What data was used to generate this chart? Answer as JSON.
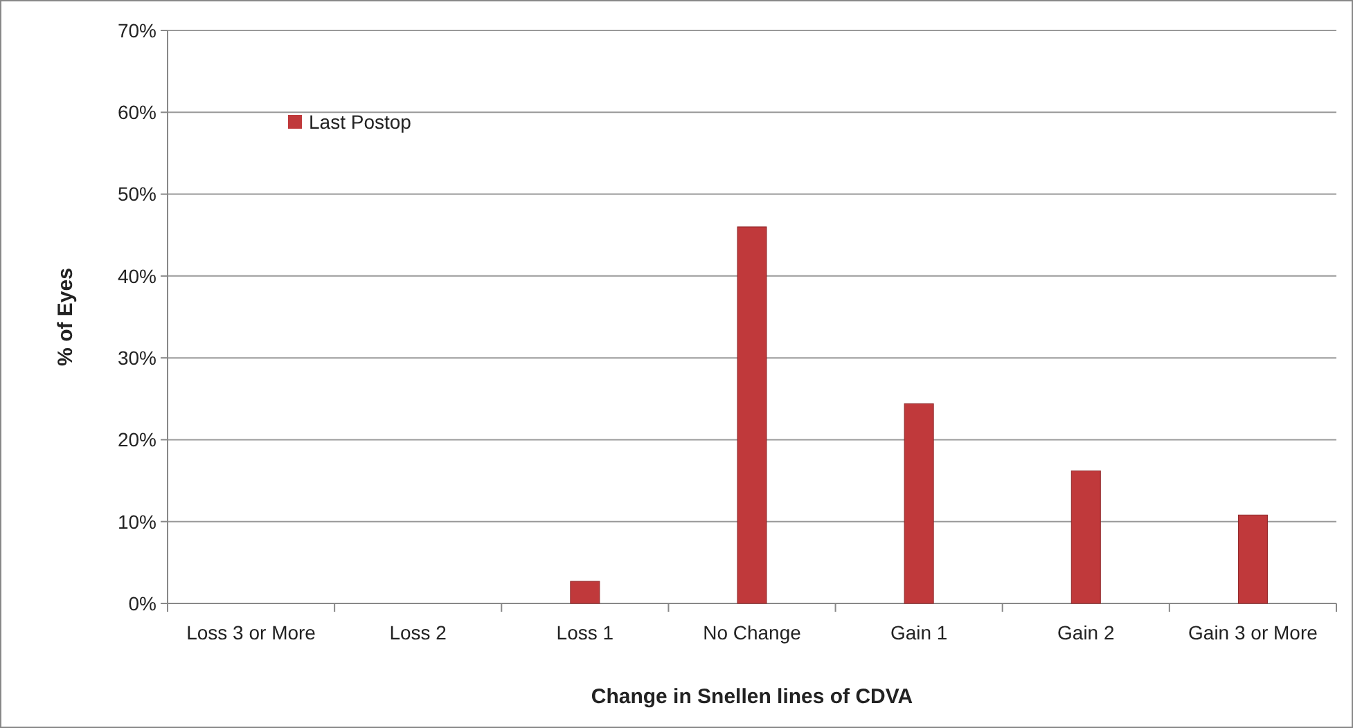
{
  "chart_data": {
    "type": "bar",
    "xlabel": "Change in Snellen lines of CDVA",
    "ylabel": "% of Eyes",
    "categories": [
      "Loss 3 or More",
      "Loss 2",
      "Loss 1",
      "No Change",
      "Gain 1",
      "Gain 2",
      "Gain 3 or More"
    ],
    "series": [
      {
        "name": "Last Postop",
        "color": "#c0393b",
        "values": [
          0,
          0,
          2.7,
          46.0,
          24.4,
          16.2,
          10.8
        ]
      }
    ],
    "ylim": [
      0,
      70
    ],
    "yticks": [
      {
        "value": 0,
        "label": "0%"
      },
      {
        "value": 10,
        "label": "10%"
      },
      {
        "value": 20,
        "label": "20%"
      },
      {
        "value": 30,
        "label": "30%"
      },
      {
        "value": 40,
        "label": "40%"
      },
      {
        "value": 50,
        "label": "50%"
      },
      {
        "value": 60,
        "label": "60%"
      },
      {
        "value": 70,
        "label": "70%"
      }
    ],
    "grid": "y",
    "legend": "top left"
  }
}
